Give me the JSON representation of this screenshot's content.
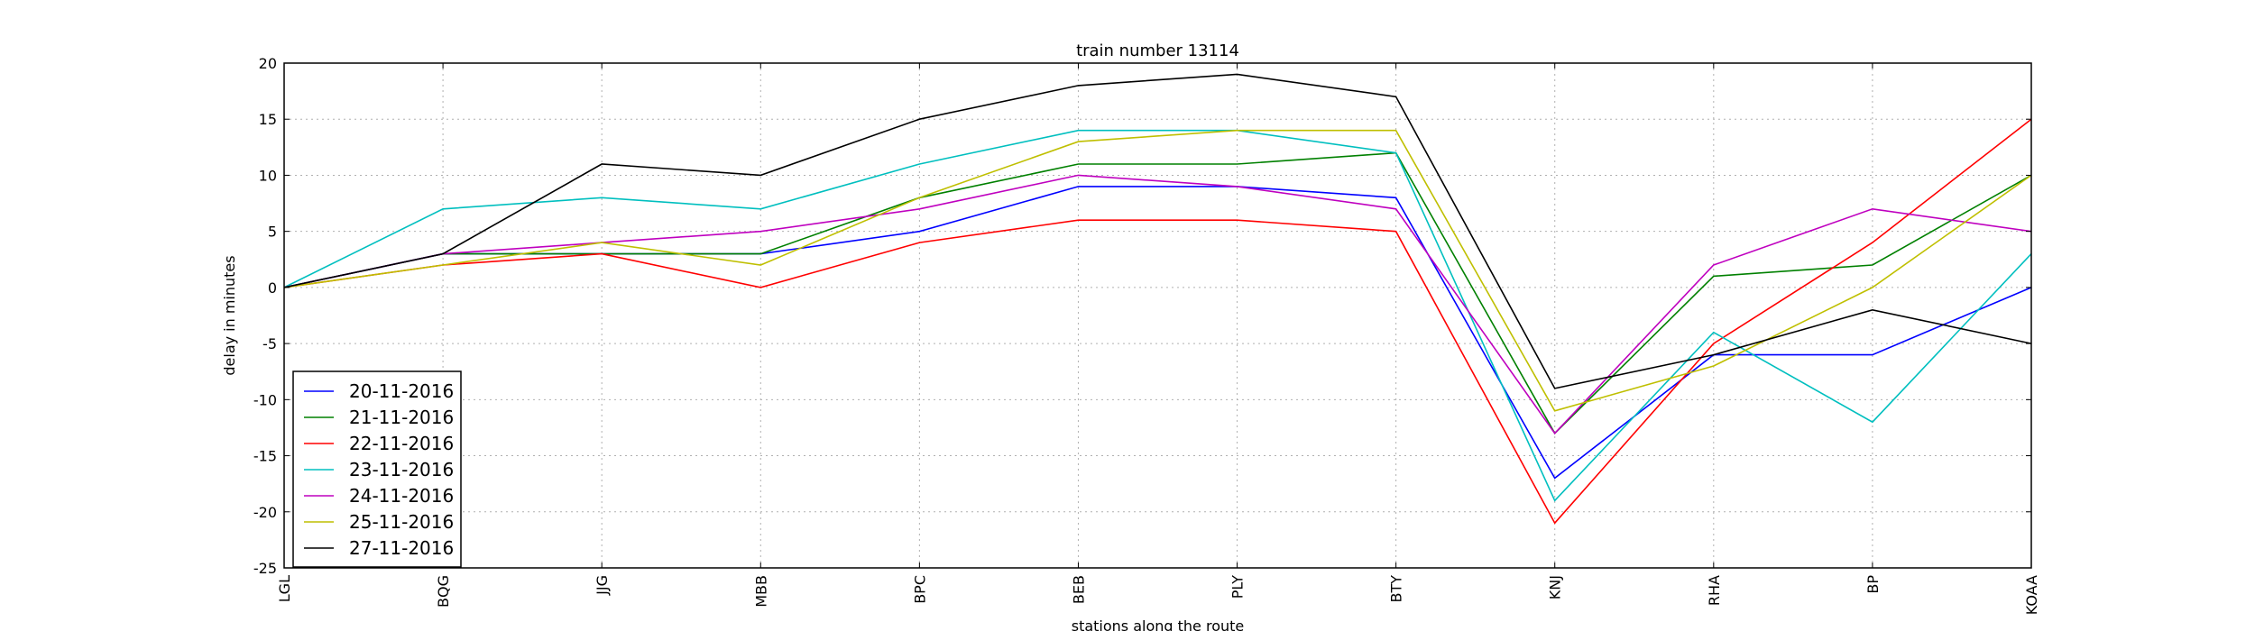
{
  "chart_data": {
    "type": "line",
    "title": "train number 13114",
    "xlabel": "stations along the route",
    "ylabel": "delay in minutes",
    "categories": [
      "LGL",
      "BQG",
      "JJG",
      "MBB",
      "BPC",
      "BEB",
      "PLY",
      "BTY",
      "KNJ",
      "RHA",
      "BP",
      "KOAA"
    ],
    "ylim": [
      -25,
      20
    ],
    "yticks": [
      -25,
      -20,
      -15,
      -10,
      -5,
      0,
      5,
      10,
      15,
      20
    ],
    "grid": true,
    "legend_position": "lower-left",
    "series": [
      {
        "name": "20-11-2016",
        "color": "#0000ff",
        "values": [
          0,
          3,
          3,
          3,
          5,
          9,
          9,
          8,
          -17,
          -6,
          -6,
          0
        ]
      },
      {
        "name": "21-11-2016",
        "color": "#008000",
        "values": [
          0,
          3,
          3,
          3,
          8,
          11,
          11,
          12,
          -13,
          1,
          2,
          10
        ]
      },
      {
        "name": "22-11-2016",
        "color": "#ff0000",
        "values": [
          0,
          2,
          3,
          0,
          4,
          6,
          6,
          5,
          -21,
          -5,
          4,
          15
        ]
      },
      {
        "name": "23-11-2016",
        "color": "#00bfbf",
        "values": [
          0,
          7,
          8,
          7,
          11,
          14,
          14,
          12,
          -19,
          -4,
          -12,
          3
        ]
      },
      {
        "name": "24-11-2016",
        "color": "#bf00bf",
        "values": [
          0,
          3,
          4,
          5,
          7,
          10,
          9,
          7,
          -13,
          2,
          7,
          5
        ]
      },
      {
        "name": "25-11-2016",
        "color": "#bfbf00",
        "values": [
          0,
          2,
          4,
          2,
          8,
          13,
          14,
          14,
          -11,
          -7,
          0,
          10
        ]
      },
      {
        "name": "27-11-2016",
        "color": "#000000",
        "values": [
          0,
          3,
          11,
          10,
          15,
          18,
          19,
          17,
          -9,
          -6,
          -2,
          -5
        ]
      }
    ]
  }
}
